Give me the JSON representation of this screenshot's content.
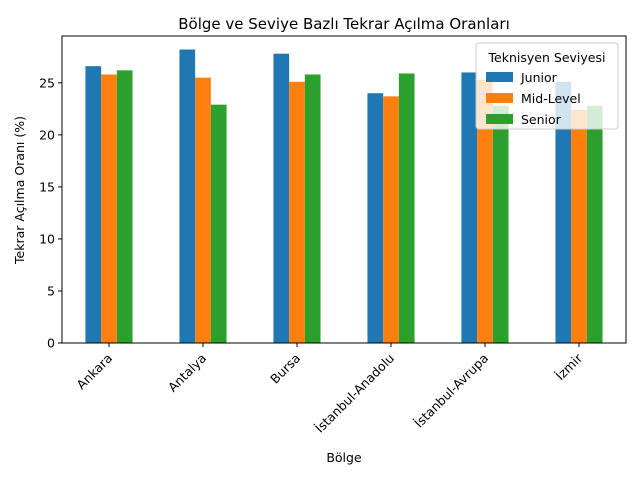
{
  "chart_data": {
    "type": "bar",
    "title": "Bölge ve Seviye Bazlı Tekrar Açılma Oranları",
    "xlabel": "Bölge",
    "ylabel": "Tekrar Açılma Oranı (%)",
    "categories": [
      "Ankara",
      "Antalya",
      "Bursa",
      "İstanbul-Anadolu",
      "İstanbul-Avrupa",
      "İzmir"
    ],
    "ylim": [
      0,
      29.5
    ],
    "yticks": [
      0,
      5,
      10,
      15,
      20,
      25
    ],
    "grid": false,
    "legend": {
      "title": "Teknisyen Seviyesi",
      "placement": "top-right"
    },
    "series": [
      {
        "name": "Junior",
        "color": "#1f77b4",
        "values": [
          26.6,
          28.2,
          27.8,
          24.0,
          26.0,
          25.1
        ]
      },
      {
        "name": "Mid-Level",
        "color": "#ff7f0e",
        "values": [
          25.8,
          25.5,
          25.1,
          23.7,
          25.3,
          22.4
        ]
      },
      {
        "name": "Senior",
        "color": "#2ca02c",
        "values": [
          26.2,
          22.9,
          25.8,
          25.9,
          22.8,
          22.8
        ]
      }
    ]
  }
}
